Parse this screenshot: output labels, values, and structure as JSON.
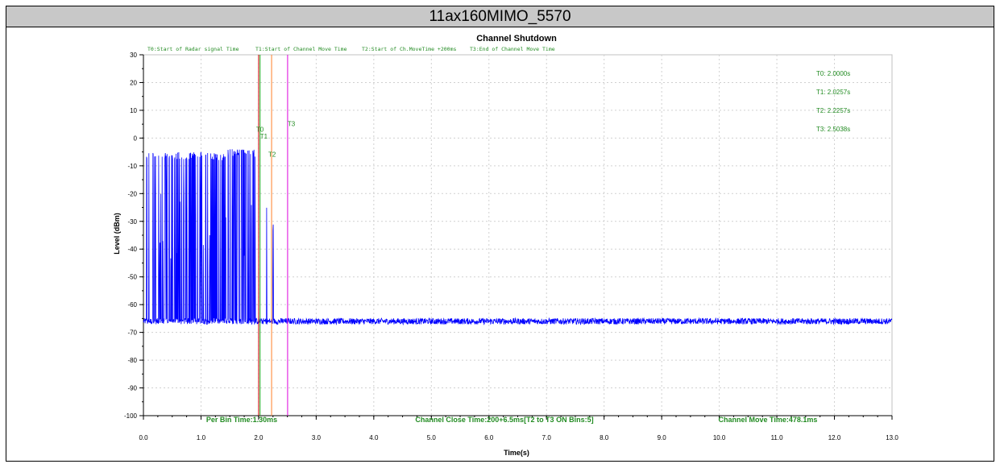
{
  "page_title": "11ax160MIMO_5570",
  "chart_data": {
    "type": "line",
    "title": "Channel Shutdown",
    "xlabel": "Time(s)",
    "ylabel": "Level (dBm)",
    "xlim": [
      0,
      13
    ],
    "ylim": [
      -100,
      30
    ],
    "x_ticks": [
      "0.0",
      "1.0",
      "2.0",
      "3.0",
      "4.0",
      "5.0",
      "6.0",
      "7.0",
      "8.0",
      "9.0",
      "10.0",
      "11.0",
      "12.0",
      "13.0"
    ],
    "y_ticks": [
      "30",
      "20",
      "10",
      "0",
      "-10",
      "-20",
      "-30",
      "-40",
      "-50",
      "-60",
      "-70",
      "-80",
      "-90",
      "-100"
    ],
    "grid": true,
    "line_color": "#0000ff",
    "noise_floor_dbm": -66,
    "pulse_peak_dbm": -5,
    "pulse_region_s": [
      0.05,
      2.5
    ],
    "legend_notes": [
      "T0:Start of Radar signal Time",
      "T1:Start of Channel Move Time",
      "T2:Start of Ch.MoveTime +200ms",
      "T3:End of Channel Move Time"
    ],
    "markers": [
      {
        "label": "T0",
        "x": 2.0,
        "color": "#cc0000"
      },
      {
        "label": "T1",
        "x": 2.0257,
        "color": "#22aa22"
      },
      {
        "label": "T2",
        "x": 2.2257,
        "color": "#ff7f27"
      },
      {
        "label": "T3",
        "x": 2.5038,
        "color": "#dd00dd"
      }
    ],
    "marker_readouts": [
      "T0: 2.0000s",
      "T1: 2.0257s",
      "T2: 2.2257s",
      "T3: 2.5038s"
    ],
    "footer": {
      "per_bin": "Per Bin Time:1.30ms",
      "close_time": "Channel Close Time:200+6.5ms[T2 to T3 ON Bins:5]",
      "move_time": "Channel Move Time:478.1ms"
    },
    "annotation_color": "#228b22"
  }
}
